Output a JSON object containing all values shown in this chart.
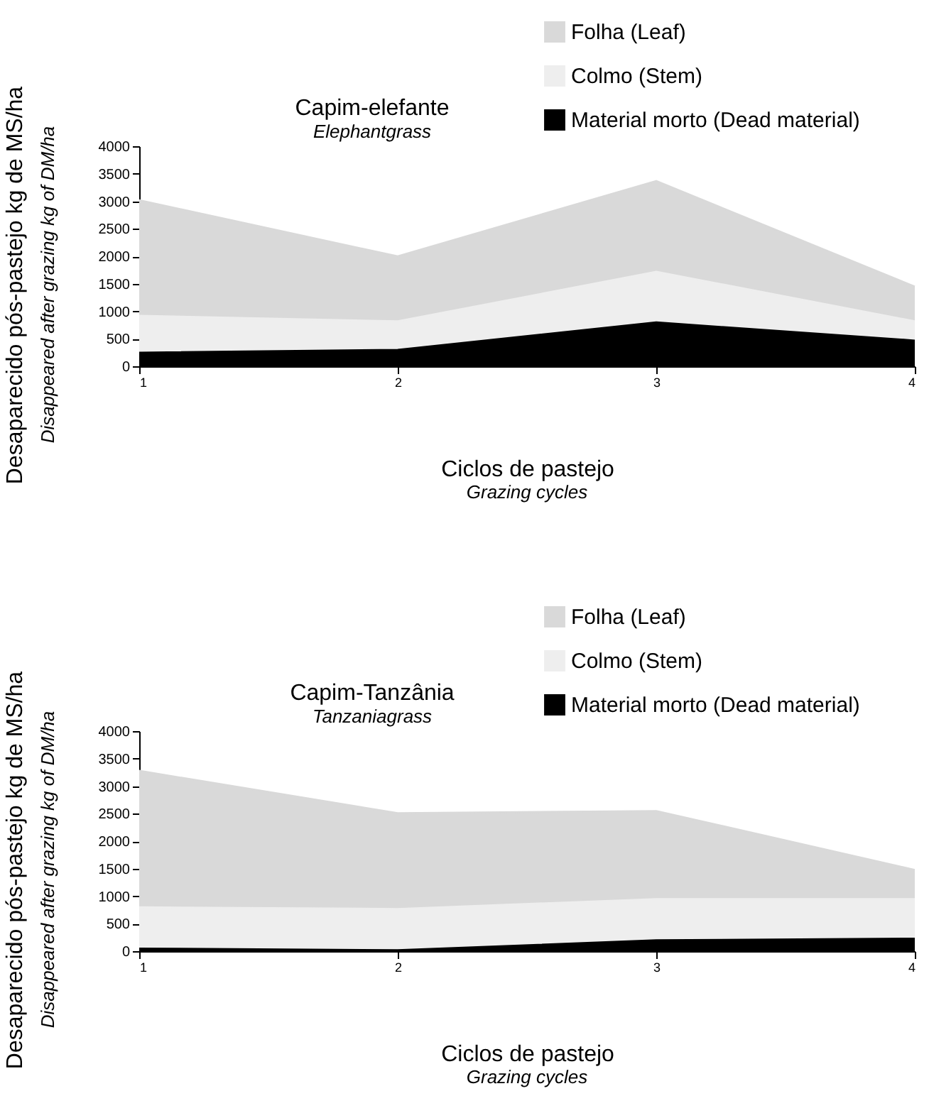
{
  "chart_data": [
    {
      "type": "area",
      "stacked": true,
      "title": "Capim-elefante",
      "subtitle": "Elephantgrass",
      "xlabel": "Ciclos de pastejo\nGrazing cycles",
      "ylabel": "Desaparecido pós-pastejo kg de MS/ha\nDisappeared after grazing kg of DM/ha",
      "x": [
        1,
        2,
        3,
        4
      ],
      "xlim": [
        1,
        4
      ],
      "xticks": [
        1,
        2,
        3,
        4
      ],
      "ylim": [
        0,
        4000
      ],
      "yticks": [
        0,
        500,
        1000,
        1500,
        2000,
        2500,
        3000,
        3500,
        4000
      ],
      "legend": "top right",
      "series": [
        {
          "name": "Material morto (Dead material)",
          "color": "#000000",
          "values": [
            250,
            300,
            800,
            470
          ]
        },
        {
          "name": "Colmo (Stem)",
          "color": "#eeeeee",
          "values": [
            670,
            520,
            920,
            350
          ]
        },
        {
          "name": "Folha (Leaf)",
          "color": "#d9d9d9",
          "values": [
            2100,
            1180,
            1650,
            630
          ]
        }
      ]
    },
    {
      "type": "area",
      "stacked": true,
      "title": "Capim-Tanzânia",
      "subtitle": "Tanzaniagrass",
      "xlabel": "Ciclos de pastejo\nGrazing cycles",
      "ylabel": "Desaparecido pós-pastejo kg de MS/ha\nDisappeared after grazing kg of DM/ha",
      "x": [
        1,
        2,
        3,
        4
      ],
      "xlim": [
        1,
        4
      ],
      "xticks": [
        1,
        2,
        3,
        4
      ],
      "ylim": [
        0,
        4000
      ],
      "yticks": [
        0,
        500,
        1000,
        1500,
        2000,
        2500,
        3000,
        3500,
        4000
      ],
      "legend": "top right",
      "series": [
        {
          "name": "Material morto (Dead material)",
          "color": "#000000",
          "values": [
            50,
            20,
            200,
            230
          ]
        },
        {
          "name": "Colmo (Stem)",
          "color": "#eeeeee",
          "values": [
            750,
            750,
            750,
            720
          ]
        },
        {
          "name": "Folha (Leaf)",
          "color": "#d9d9d9",
          "values": [
            2480,
            1740,
            1600,
            530
          ]
        }
      ]
    }
  ]
}
